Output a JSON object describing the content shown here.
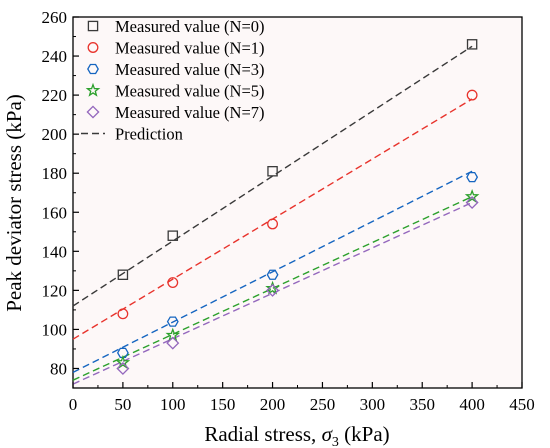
{
  "chart_data": {
    "type": "scatter",
    "xlabel": "Radial stress, ",
    "xlabel_symbol": "σ",
    "xlabel_sub": "3",
    "xlabel_unit": " (kPa)",
    "ylabel": "Peak deviator stress (kPa)",
    "xlim": [
      0,
      450
    ],
    "ylim": [
      70,
      260
    ],
    "xticks": [
      0,
      50,
      100,
      150,
      200,
      250,
      300,
      350,
      400,
      450
    ],
    "yticks": [
      80,
      100,
      120,
      140,
      160,
      180,
      200,
      220,
      240,
      260
    ],
    "grid": false,
    "legend_position": "top-left",
    "background": "#fdf8f8",
    "x": [
      50,
      100,
      200,
      400
    ],
    "series": [
      {
        "name": "Measured value (N=0)",
        "marker": "square",
        "color": "#3a3a3a",
        "values": [
          128,
          148,
          181,
          246
        ]
      },
      {
        "name": "Measured value (N=1)",
        "marker": "circle",
        "color": "#e8332c",
        "values": [
          108,
          124,
          154,
          220
        ]
      },
      {
        "name": "Measured value (N=3)",
        "marker": "hexagon",
        "color": "#1565c0",
        "values": [
          88,
          104,
          128,
          178
        ]
      },
      {
        "name": "Measured value (N=5)",
        "marker": "star",
        "color": "#2ca02c",
        "values": [
          83,
          97,
          121,
          168
        ]
      },
      {
        "name": "Measured value (N=7)",
        "marker": "diamond",
        "color": "#9467bd",
        "values": [
          80,
          93,
          120,
          165
        ]
      }
    ],
    "prediction": {
      "name": "Prediction",
      "lines": [
        {
          "color": "#3a3a3a",
          "x": [
            0,
            400
          ],
          "y": [
            112,
            245
          ]
        },
        {
          "color": "#e8332c",
          "x": [
            0,
            400
          ],
          "y": [
            95,
            218
          ]
        },
        {
          "color": "#1565c0",
          "x": [
            0,
            400
          ],
          "y": [
            78,
            181
          ]
        },
        {
          "color": "#2ca02c",
          "x": [
            0,
            400
          ],
          "y": [
            74,
            168
          ]
        },
        {
          "color": "#9467bd",
          "x": [
            0,
            400
          ],
          "y": [
            72,
            165
          ]
        }
      ]
    }
  }
}
